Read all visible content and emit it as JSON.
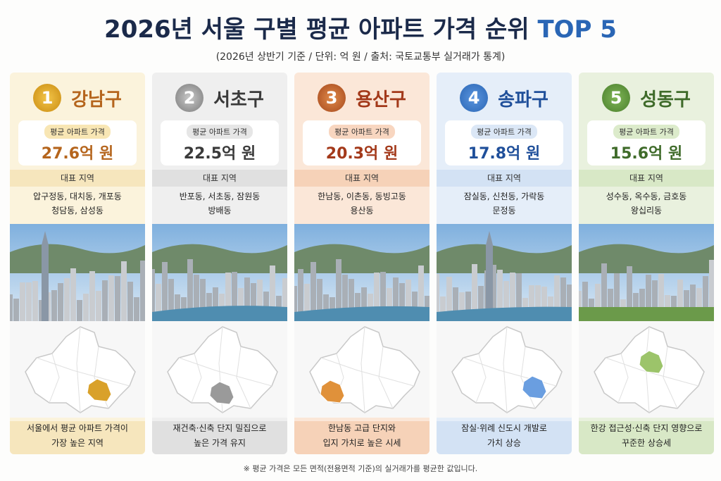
{
  "header": {
    "title": "2026년 서울 구별 평균 아파트 가격 순위",
    "title_highlight": "TOP 5",
    "subtitle": "(2026년 상반기 기준 / 단위: 억 원 / 출처: 국토교통부 실거래가 통계)"
  },
  "cards": [
    {
      "rank": 1,
      "district": "강남구",
      "price_label": "평균 아파트 가격",
      "price": "27.6억 원",
      "region_label": "대표 지역",
      "neighborhoods": [
        "압구정동, 대치동, 개포동",
        "청담동, 삼성동"
      ],
      "description": [
        "서울에서 평균 아파트 가격이",
        "가장 높은 지역"
      ]
    },
    {
      "rank": 2,
      "district": "서초구",
      "price_label": "평균 아파트 가격",
      "price": "22.5억 원",
      "region_label": "대표 지역",
      "neighborhoods": [
        "반포동, 서초동, 잠원동",
        "방배동"
      ],
      "description": [
        "재건축·신축 단지 밀집으로",
        "높은 가격 유지"
      ]
    },
    {
      "rank": 3,
      "district": "용산구",
      "price_label": "평균 아파트 가격",
      "price": "20.3억 원",
      "region_label": "대표 지역",
      "neighborhoods": [
        "한남동, 이촌동, 동빙고동",
        "용산동"
      ],
      "description": [
        "한남동 고급 단지와",
        "입지 가치로 높은 시세"
      ]
    },
    {
      "rank": 4,
      "district": "송파구",
      "price_label": "평균 아파트 가격",
      "price": "17.8억 원",
      "region_label": "대표 지역",
      "neighborhoods": [
        "잠실동, 신천동, 가락동",
        "문정동"
      ],
      "description": [
        "잠실·위례 신도시 개발로",
        "가치 상승"
      ]
    },
    {
      "rank": 5,
      "district": "성동구",
      "price_label": "평균 아파트 가격",
      "price": "15.6억 원",
      "region_label": "대표 지역",
      "neighborhoods": [
        "성수동, 옥수동, 금호동",
        "왕십리동"
      ],
      "description": [
        "한강 접근성·신축 단지 영향으로",
        "꾸준한 상승세"
      ]
    }
  ],
  "footnote": "※ 평균 가격은 모든 면적(전용면적 기준)의 실거래가를 평균한 값입니다."
}
